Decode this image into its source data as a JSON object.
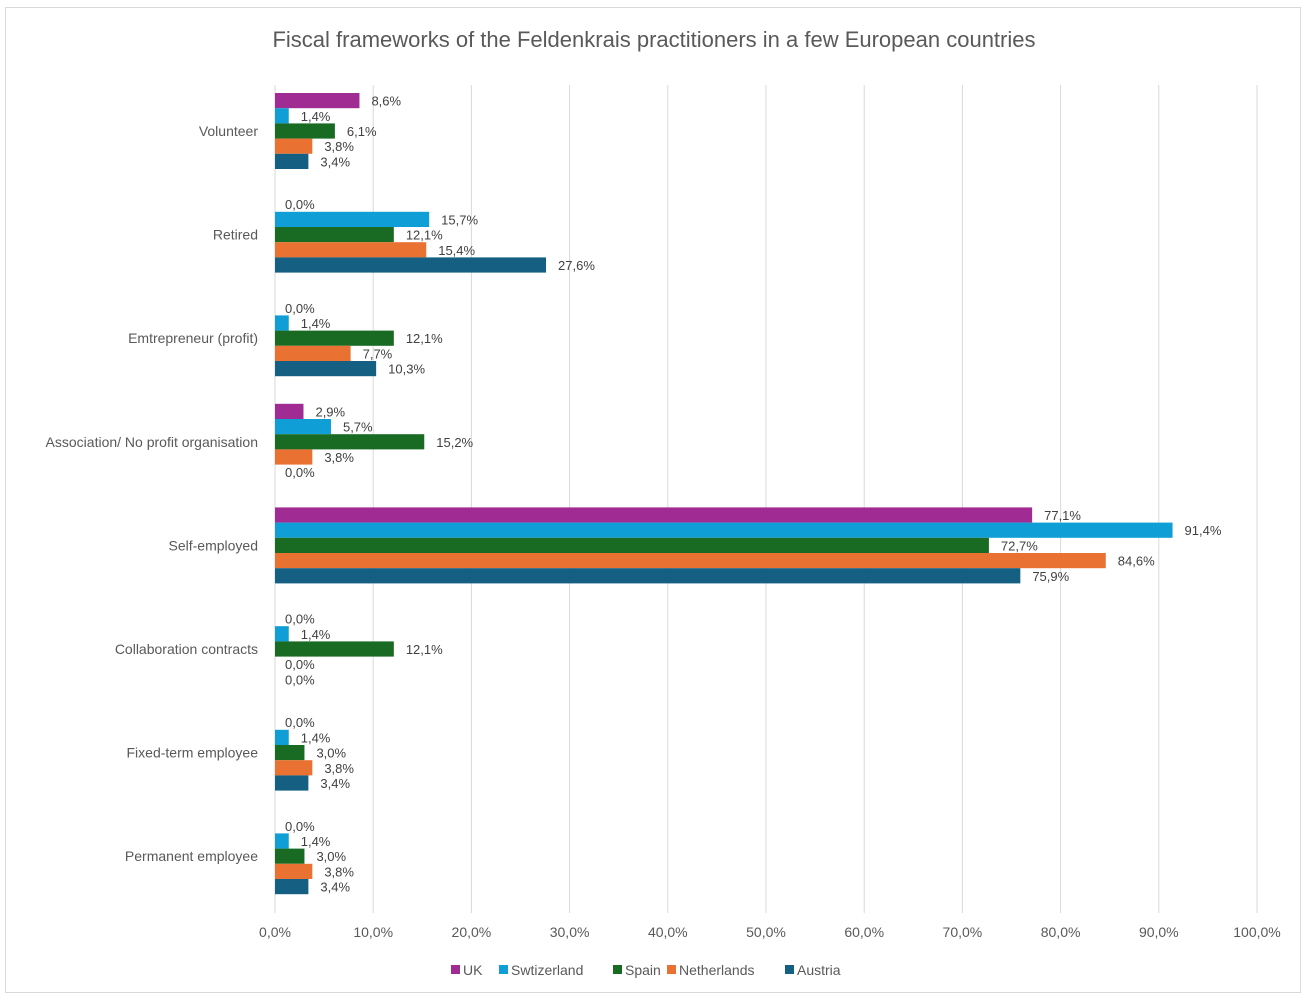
{
  "chart_data": {
    "type": "bar",
    "orientation": "horizontal",
    "title": "Fiscal frameworks of the Feldenkrais practitioners in a few European countries",
    "categories": [
      "Volunteer",
      "Retired",
      "Emtrepreneur (profit)",
      "Association/ No profit organisation",
      "Self-employed",
      "Collaboration contracts",
      "Fixed-term employee",
      "Permanent employee"
    ],
    "series": [
      {
        "name": "UK",
        "color": "#A02B93",
        "values": [
          8.6,
          0.0,
          0.0,
          2.9,
          77.1,
          0.0,
          0.0,
          0.0
        ],
        "labels": [
          "8,6%",
          "0,0%",
          "0,0%",
          "2,9%",
          "77,1%",
          "0,0%",
          "0,0%",
          "0,0%"
        ]
      },
      {
        "name": "Swtizerland",
        "color": "#0F9ED5",
        "values": [
          1.4,
          15.7,
          1.4,
          5.7,
          91.4,
          1.4,
          1.4,
          1.4
        ],
        "labels": [
          "1,4%",
          "15,7%",
          "1,4%",
          "5,7%",
          "91,4%",
          "1,4%",
          "1,4%",
          "1,4%"
        ]
      },
      {
        "name": "Spain",
        "color": "#196B24",
        "values": [
          6.1,
          12.1,
          12.1,
          15.2,
          72.7,
          12.1,
          3.0,
          3.0
        ],
        "labels": [
          "6,1%",
          "12,1%",
          "12,1%",
          "15,2%",
          "72,7%",
          "12,1%",
          "3,0%",
          "3,0%"
        ]
      },
      {
        "name": "Netherlands",
        "color": "#E97132",
        "values": [
          3.8,
          15.4,
          7.7,
          3.8,
          84.6,
          0.0,
          3.8,
          3.8
        ],
        "labels": [
          "3,8%",
          "15,4%",
          "7,7%",
          "3,8%",
          "84,6%",
          "0,0%",
          "3,8%",
          "3,8%"
        ]
      },
      {
        "name": "Austria",
        "color": "#156082",
        "values": [
          3.4,
          27.6,
          10.3,
          0.0,
          75.9,
          0.0,
          3.4,
          3.4
        ],
        "labels": [
          "3,4%",
          "27,6%",
          "10,3%",
          "0,0%",
          "75,9%",
          "0,0%",
          "3,4%",
          "3,4%"
        ]
      }
    ],
    "xlim": [
      0,
      100
    ],
    "xticks": [
      0,
      10,
      20,
      30,
      40,
      50,
      60,
      70,
      80,
      90,
      100
    ],
    "xtick_labels": [
      "0,0%",
      "10,0%",
      "20,0%",
      "30,0%",
      "40,0%",
      "50,0%",
      "60,0%",
      "70,0%",
      "80,0%",
      "90,0%",
      "100,0%"
    ],
    "xlabel": "",
    "ylabel": "",
    "grid": "vertical",
    "legend": "bottom"
  }
}
